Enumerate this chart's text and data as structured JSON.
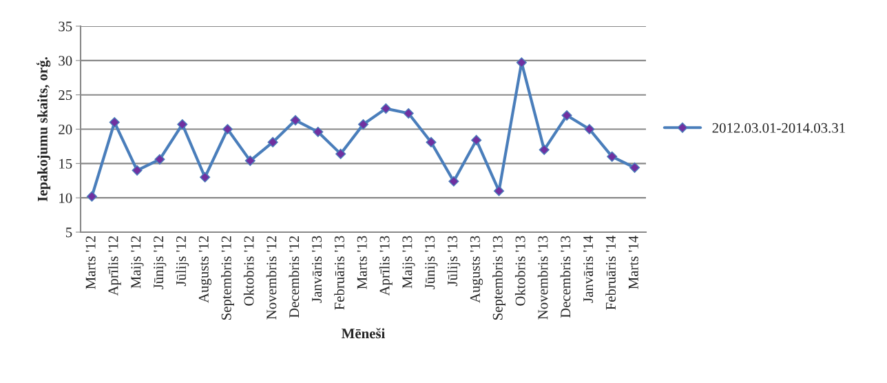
{
  "chart_data": {
    "type": "line",
    "xlabel": "Mēneši",
    "ylabel": "Iepakojumu skaits, orģ.",
    "categories": [
      "Marts '12",
      "Aprīlis '12",
      "Maijs '12",
      "Jūnijs '12",
      "Jūlijs '12",
      "Augusts '12",
      "Septembris '12",
      "Oktobris '12",
      "Novembris '12",
      "Decembris '12",
      "Janvāris '13",
      "Februāris '13",
      "Marts '13",
      "Aprīlis '13",
      "Maijs '13",
      "Jūnijs '13",
      "Jūlijs '13",
      "Augusts '13",
      "Septembris '13",
      "Oktobris '13",
      "Novembris '13",
      "Decembris '13",
      "Janvāris '14",
      "Februāris '14",
      "Marts '14"
    ],
    "series": [
      {
        "name": "2012.03.01-2014.03.31",
        "color": "#4a7ebb",
        "values": [
          10.2,
          21.0,
          14.0,
          15.6,
          20.7,
          13.0,
          20.0,
          15.4,
          18.1,
          21.3,
          19.6,
          16.4,
          20.7,
          23.0,
          22.3,
          18.1,
          12.4,
          18.4,
          11.0,
          29.7,
          17.0,
          22.0,
          20.0,
          16.0,
          14.4
        ]
      }
    ],
    "ylim": [
      5,
      35
    ],
    "yticks": [
      5,
      10,
      15,
      20,
      25,
      30,
      35
    ],
    "grid": "y",
    "legend": "right",
    "marker": "diamond",
    "line_style": "solid"
  }
}
